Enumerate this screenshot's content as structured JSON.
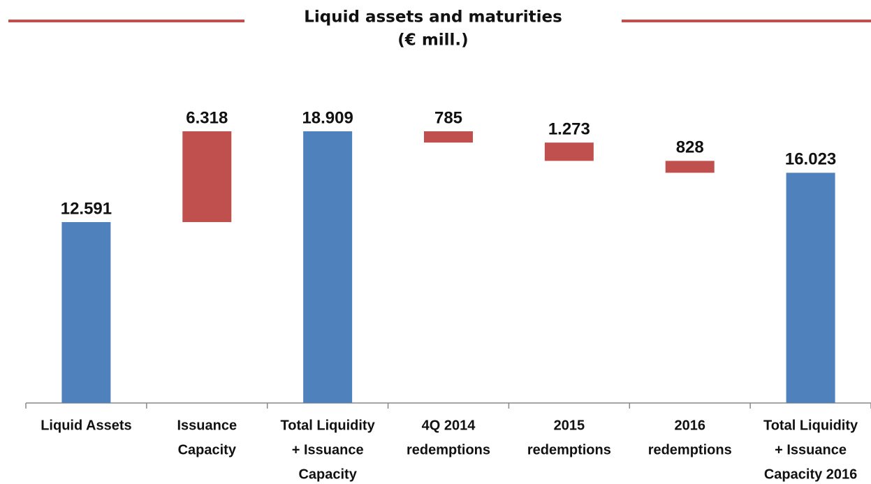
{
  "chart_data": {
    "type": "waterfall",
    "title": "Liquid assets and maturities",
    "subtitle": "(€ mill.)",
    "categories": [
      [
        "Liquid Assets"
      ],
      [
        "Issuance",
        "Capacity"
      ],
      [
        "Total Liquidity",
        "+ Issuance",
        "Capacity"
      ],
      [
        "4Q 2014",
        "redemptions"
      ],
      [
        "2015",
        "redemptions"
      ],
      [
        "2016",
        "redemptions"
      ],
      [
        "Total Liquidity",
        "+ Issuance",
        "Capacity 2016"
      ]
    ],
    "values": [
      12591,
      6318,
      18909,
      -785,
      -1273,
      -828,
      16023
    ],
    "value_labels": [
      "12.591",
      "6.318",
      "18.909",
      "785",
      "1.273",
      "828",
      "16.023"
    ],
    "measure": [
      "absolute",
      "relative",
      "total",
      "relative",
      "relative",
      "relative",
      "total"
    ],
    "colors": {
      "total": "#4f81bd",
      "change": "#c0504d"
    },
    "grid": false
  }
}
